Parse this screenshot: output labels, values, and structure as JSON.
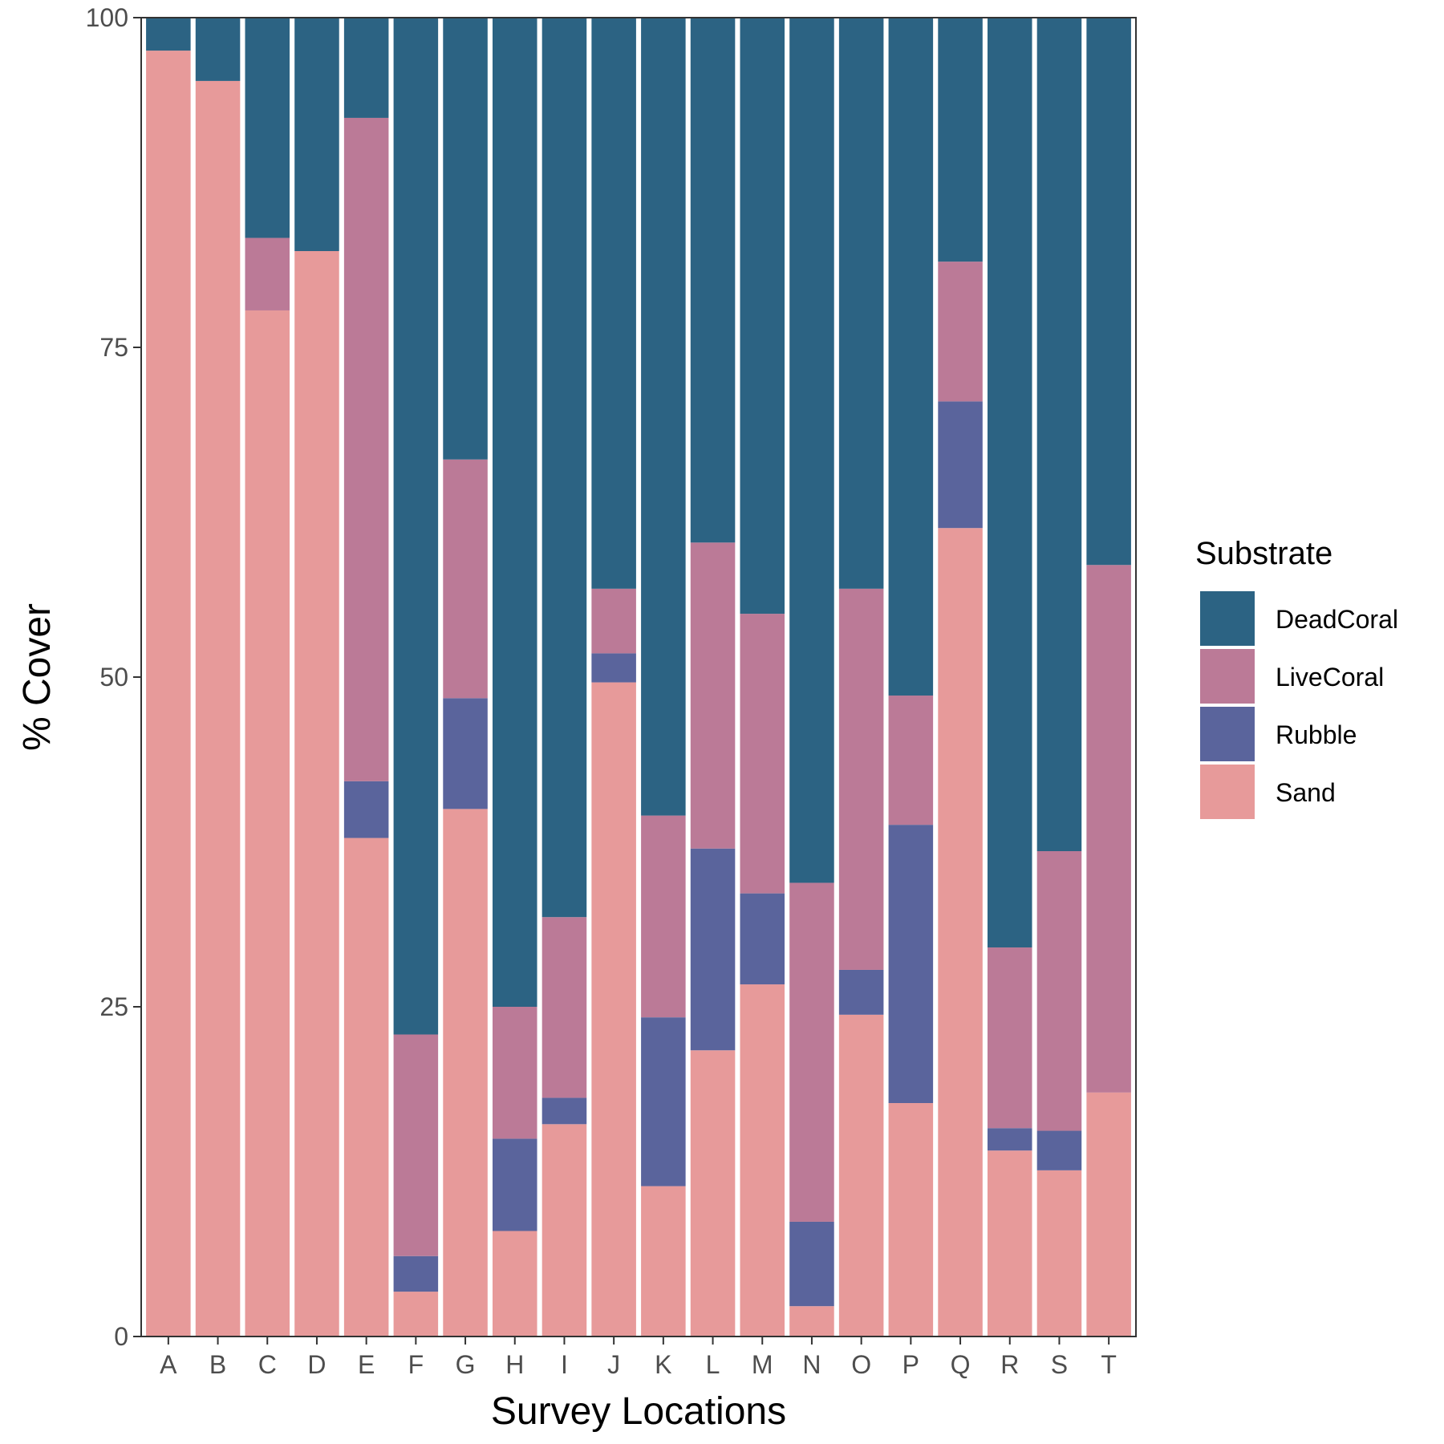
{
  "chart_data": {
    "type": "bar",
    "stacked": true,
    "xlabel": "Survey Locations",
    "ylabel": "% Cover",
    "ylim": [
      0,
      100
    ],
    "yticks": [
      0,
      25,
      50,
      75,
      100
    ],
    "grid": false,
    "legend": {
      "title": "Substrate",
      "placement": "right"
    },
    "categories": [
      "A",
      "B",
      "C",
      "D",
      "E",
      "F",
      "G",
      "H",
      "I",
      "J",
      "K",
      "L",
      "M",
      "N",
      "O",
      "P",
      "Q",
      "R",
      "S",
      "T"
    ],
    "series": [
      {
        "name": "Sand",
        "color": "#E79A9A",
        "values": [
          97.5,
          95.2,
          77.8,
          82.3,
          37.8,
          3.4,
          40.0,
          8.0,
          16.1,
          49.6,
          11.4,
          21.7,
          26.7,
          2.3,
          24.4,
          17.7,
          61.3,
          14.1,
          12.6,
          18.5
        ]
      },
      {
        "name": "Rubble",
        "color": "#5A649C",
        "values": [
          0,
          0,
          0,
          0,
          4.3,
          2.7,
          8.4,
          7.0,
          2.0,
          2.2,
          12.8,
          15.3,
          6.9,
          6.4,
          3.4,
          21.1,
          9.6,
          1.7,
          3.0,
          0
        ]
      },
      {
        "name": "LiveCoral",
        "color": "#BB7A97",
        "values": [
          0,
          0,
          5.5,
          0,
          50.3,
          16.8,
          18.1,
          10.0,
          13.7,
          4.9,
          15.3,
          23.2,
          21.2,
          25.7,
          28.9,
          9.8,
          10.6,
          13.7,
          21.2,
          40.0
        ]
      },
      {
        "name": "DeadCoral",
        "color": "#2C6383",
        "values": [
          2.5,
          4.8,
          16.7,
          17.7,
          7.6,
          77.1,
          33.5,
          75.0,
          68.2,
          43.3,
          60.5,
          39.8,
          45.2,
          65.6,
          43.3,
          51.4,
          18.5,
          70.5,
          63.2,
          41.5
        ]
      }
    ],
    "legend_order": [
      "DeadCoral",
      "LiveCoral",
      "Rubble",
      "Sand"
    ]
  }
}
